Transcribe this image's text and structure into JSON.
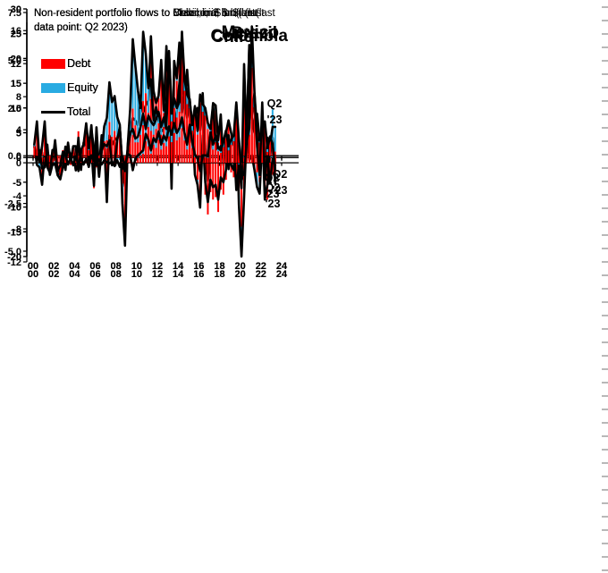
{
  "page": {
    "background": "#ffffff"
  },
  "colors": {
    "debt": "#ff0000",
    "equity": "#29abe2",
    "total": "#000000",
    "axis": "#000000",
    "edge_ticks": "#b0b0b0"
  },
  "legend": {
    "debt": "Debt",
    "equity": "Equity",
    "total": "Total"
  },
  "chart_data": [
    {
      "id": "mexico",
      "type": "bar",
      "country_label": "Mexico",
      "title_line1": "Non-resident portfolio flows to Mexico, in $ bn (last",
      "title_line2": "data point: Q2 2023)",
      "unit": "$ bn",
      "frequency": "quarterly",
      "x_start": "2000Q1",
      "x_end": "2023Q2",
      "annotation_line1": "Q2",
      "annotation_line2": "'23",
      "x_tick_labels": [
        "00",
        "02",
        "04",
        "06",
        "08",
        "10",
        "12",
        "14",
        "16",
        "18",
        "20",
        "22",
        "24"
      ],
      "y_ticks": [
        30,
        25,
        20,
        15,
        10,
        5,
        0,
        -5,
        -10,
        -15,
        -20
      ],
      "y_tick_labels": [
        "30",
        "25",
        "20",
        "15",
        "10",
        "5",
        "0",
        "-5",
        "-10",
        "-15",
        "-20"
      ],
      "ylim": {
        "min": -20,
        "max": 30
      },
      "total_note": "black line = Debt + Equity",
      "series": {
        "debt": [
          2.0,
          -0.5,
          -1.0,
          -4.0,
          1.5,
          0.5,
          -1.0,
          0.5,
          3.0,
          -1.5,
          -3.5,
          1.5,
          -2.0,
          2.5,
          -1.5,
          1.5,
          -2.0,
          5.3,
          -2.0,
          2.5,
          2.5,
          0.5,
          4.5,
          1.0,
          -2.0,
          -1.0,
          3.5,
          2.0,
          -6.0,
          3.0,
          1.5,
          4.5,
          4.5,
          6.5,
          -1.0,
          -3.8,
          0.5,
          3.5,
          6.5,
          6.0,
          5.5,
          10.5,
          8.0,
          9.5,
          10.5,
          19.5,
          12.5,
          11.5,
          12.0,
          17.2,
          9.0,
          20.0,
          12.0,
          -3.3,
          18.0,
          15.5,
          20.7,
          8.5,
          12.0,
          7.5,
          10.8,
          4.5,
          7.5,
          9.0,
          5.0,
          12.0,
          2.5,
          -2.8,
          1.5,
          10.0,
          9.5,
          3.0,
          8.0,
          -1.0,
          4.5,
          6.8,
          4.5,
          2.0,
          4.0,
          -1.5,
          -0.5,
          -3.5,
          7.5,
          -0.2,
          0.8,
          -1.5,
          -3.0,
          -5.0,
          3.7,
          -3.2,
          3.5,
          0.8,
          3.5,
          -3.2
        ],
        "equity": [
          0.5,
          -1.0,
          -1.0,
          -1.5,
          -0.5,
          -1.0,
          -0.5,
          -1.5,
          0.5,
          -0.5,
          -0.7,
          -0.5,
          -0.5,
          0.5,
          0.5,
          0.5,
          -0.5,
          -1.3,
          -0.5,
          0.5,
          1.0,
          0.5,
          1.0,
          1.0,
          1.0,
          -1.0,
          1.0,
          1.0,
          -3.0,
          1.5,
          1.0,
          -1.0,
          -0.5,
          -0.5,
          -0.5,
          -2.0,
          0.0,
          1.0,
          1.5,
          1.5,
          1.0,
          1.0,
          1.0,
          1.0,
          1.0,
          5.0,
          1.0,
          -0.5,
          0.5,
          2.5,
          0.5,
          2.5,
          1.0,
          -3.0,
          1.5,
          0.5,
          2.5,
          0.5,
          1.0,
          0.5,
          1.0,
          0.5,
          1.0,
          1.0,
          0.5,
          1.0,
          -0.5,
          -2.0,
          0.5,
          1.0,
          1.0,
          0.5,
          0.7,
          -0.5,
          0.5,
          0.7,
          0.5,
          0.5,
          0.5,
          -0.5,
          -0.5,
          -1.0,
          0.8,
          -0.3,
          -0.3,
          -1.0,
          -3.0,
          -2.3,
          0.5,
          -1.4,
          0.5,
          -0.3,
          0.5,
          -2.0
        ]
      }
    },
    {
      "id": "brazil",
      "type": "bar",
      "country_label": "Brazil",
      "title_line1": "Non-resident portfolio flows to Brazil, in $ bn (last",
      "title_line2": "data point: Q2 2023)",
      "unit": "$ bn",
      "frequency": "quarterly",
      "x_start": "2000Q1",
      "x_end": "2023Q2",
      "annotation_line1": "Q2",
      "annotation_line2": "'23",
      "x_tick_labels": [
        "00",
        "02",
        "04",
        "06",
        "08",
        "10",
        "12",
        "14",
        "16",
        "18",
        "20",
        "22",
        "24"
      ],
      "y_ticks": [
        30,
        25,
        20,
        15,
        10,
        5,
        0,
        -5,
        -10,
        -15,
        -20
      ],
      "y_tick_labels": [
        "30",
        "25",
        "20",
        "15",
        "10",
        "5",
        "0",
        "-5",
        "-10",
        "-15",
        "-20"
      ],
      "ylim": {
        "min": -20,
        "max": 30
      },
      "total_note": "black line = Debt + Equity",
      "series": {
        "debt": [
          1.5,
          -0.5,
          1.0,
          -1.5,
          -1.5,
          2.0,
          -2.5,
          -1.0,
          -0.8,
          -2.8,
          -3.6,
          -1.5,
          1.2,
          0.8,
          0.2,
          0.6,
          -2.0,
          -1.0,
          0.5,
          1.2,
          2.0,
          -1.0,
          0.8,
          -6.2,
          4.0,
          -3.2,
          0.2,
          3.3,
          3.5,
          7.2,
          4.2,
          5.4,
          4.2,
          2.6,
          -5.3,
          -12.8,
          -1.0,
          2.8,
          9.9,
          6.5,
          4.5,
          4.0,
          11.4,
          13.0,
          9.0,
          11.8,
          5.5,
          8.2,
          5.3,
          3.2,
          2.8,
          7.2,
          12.5,
          7.0,
          2.0,
          5.5,
          10.0,
          13.9,
          7.0,
          12.7,
          7.5,
          4.5,
          -2.5,
          -4.5,
          -8.1,
          2.5,
          -7.5,
          -11.5,
          -7.0,
          -8.5,
          -8.0,
          -11.0,
          -6.5,
          -7.5,
          -4.5,
          2.5,
          -3.0,
          -4.0,
          9.3,
          -7.5,
          -14.0,
          -6.5,
          2.0,
          12.1,
          4.5,
          7.0,
          2.5,
          -4.0,
          3.5,
          -6.0,
          -8.5,
          -2.0,
          -3.5,
          1.2
        ],
        "equity": [
          0.7,
          -0.3,
          0.5,
          -0.7,
          -0.5,
          0.6,
          -1.0,
          -0.4,
          -0.4,
          -0.8,
          -0.8,
          -0.5,
          1.0,
          0.6,
          0.4,
          0.6,
          -0.6,
          -0.2,
          0.7,
          1.0,
          1.2,
          0.4,
          0.8,
          0.5,
          2.1,
          0.6,
          1.0,
          3.0,
          4.5,
          8.0,
          7.0,
          7.0,
          4.0,
          4.0,
          -4.0,
          -5.0,
          3.0,
          7.0,
          14.0,
          12.0,
          9.0,
          6.0,
          14.0,
          8.0,
          5.0,
          4.0,
          2.0,
          2.0,
          2.0,
          2.0,
          3.0,
          4.0,
          9.0,
          3.0,
          3.0,
          4.0,
          5.0,
          6.0,
          4.0,
          5.0,
          3.0,
          2.0,
          -1.0,
          -1.0,
          -2.0,
          2.0,
          2.5,
          2.5,
          2.5,
          2.5,
          2.5,
          2.5,
          2.5,
          2.5,
          2.0,
          2.0,
          1.5,
          1.5,
          1.5,
          -2.0,
          -6.0,
          -1.5,
          3.0,
          10.0,
          4.0,
          6.0,
          3.0,
          2.0,
          3.0,
          -2.5,
          3.0,
          4.5,
          9.7,
          5.0
        ]
      }
    },
    {
      "id": "colombia",
      "type": "bar",
      "country_label": "Colombia",
      "title_line1": "Non-resident portfolio flows to Colombia, in $ bn (last",
      "title_line2": "data point: Q2 2023)",
      "unit": "$ bn",
      "frequency": "quarterly",
      "x_start": "2000Q1",
      "x_end": "2023Q2",
      "annotation_line1": "Q2",
      "annotation_line2": "'23",
      "x_tick_labels": [
        "00",
        "02",
        "04",
        "06",
        "08",
        "10",
        "12",
        "14",
        "16",
        "18",
        "20",
        "22",
        "24"
      ],
      "y_ticks": [
        7.5,
        5.0,
        2.5,
        0.0,
        -2.5,
        -5.0
      ],
      "y_tick_labels": [
        "7.5",
        "5.0",
        "2.5",
        "0.0",
        "-2.5",
        "-5.0"
      ],
      "ylim": {
        "min": -5,
        "max": 7.5
      },
      "total_note": "black line = Debt + Equity",
      "series": {
        "debt": [
          0.5,
          1.6,
          -0.3,
          0.4,
          1.6,
          -0.5,
          -0.8,
          0.2,
          0.2,
          -0.7,
          -0.4,
          0.2,
          -0.4,
          0.5,
          -0.3,
          0.4,
          0.4,
          -0.7,
          0.2,
          0.5,
          1.5,
          0.3,
          1.4,
          -0.4,
          0.3,
          -1.0,
          0.2,
          0.5,
          0.4,
          0.7,
          -0.4,
          -0.3,
          0.7,
          1.3,
          -0.5,
          -0.7,
          0.2,
          1.0,
          1.1,
          0.7,
          0.7,
          1.1,
          1.6,
          1.0,
          1.5,
          1.3,
          1.1,
          1.4,
          1.7,
          1.1,
          1.5,
          1.0,
          5.0,
          1.8,
          2.5,
          2.0,
          2.3,
          5.5,
          3.4,
          2.7,
          2.5,
          1.3,
          2.2,
          1.1,
          2.8,
          2.3,
          2.1,
          1.4,
          1.2,
          2.4,
          0.5,
          0.2,
          0.4,
          0.2,
          0.9,
          -0.6,
          0.5,
          0.7,
          -1.6,
          -0.4,
          -1.4,
          4.6,
          0.7,
          5.6,
          1.8,
          1.0,
          2.0,
          0.7,
          1.2,
          1.6,
          0.2,
          0.8,
          0.5,
          -0.5
        ],
        "equity": [
          0.1,
          0.2,
          0.0,
          0.1,
          0.2,
          -0.1,
          -0.1,
          0.1,
          0.1,
          -0.1,
          -0.1,
          0.0,
          -0.1,
          0.1,
          0.0,
          0.1,
          0.1,
          -0.1,
          0.1,
          0.1,
          0.2,
          0.1,
          0.2,
          0.0,
          0.1,
          -0.1,
          0.1,
          0.1,
          0.1,
          0.1,
          -0.1,
          -0.1,
          0.1,
          0.2,
          -0.1,
          -0.1,
          0.1,
          0.2,
          0.3,
          0.2,
          0.3,
          0.4,
          0.6,
          0.4,
          0.6,
          0.5,
          0.5,
          0.5,
          0.6,
          0.4,
          0.5,
          0.4,
          0.4,
          0.4,
          0.5,
          0.5,
          0.5,
          1.0,
          0.6,
          0.5,
          0.4,
          0.3,
          0.4,
          0.2,
          0.4,
          0.4,
          0.4,
          0.3,
          0.2,
          0.3,
          0.1,
          0.1,
          0.1,
          0.1,
          0.1,
          -0.1,
          0.1,
          0.1,
          -0.2,
          -0.1,
          -0.3,
          0.2,
          0.1,
          0.2,
          0.2,
          0.2,
          0.2,
          0.1,
          0.2,
          0.2,
          0.2,
          0.2,
          0.1,
          -0.2
        ]
      }
    },
    {
      "id": "chile",
      "type": "bar",
      "country_label": "Chile",
      "title_line1": "Non-resident portfolio flows to Chile, in $ bn (last",
      "title_line2": "data point: Q2 2023)",
      "unit": "$ bn",
      "frequency": "quarterly",
      "x_start": "2000Q1",
      "x_end": "2023Q2",
      "annotation_line1": "Q2",
      "annotation_line2": "'23",
      "x_tick_labels": [
        "00",
        "02",
        "04",
        "06",
        "08",
        "10",
        "12",
        "14",
        "16",
        "18",
        "20",
        "22",
        "24"
      ],
      "y_ticks": [
        16,
        12,
        8,
        4,
        0,
        -4,
        -8,
        -12
      ],
      "y_tick_labels": [
        "16",
        "12",
        "8",
        "4",
        "0",
        "-4",
        "-8",
        "-12"
      ],
      "ylim": {
        "min": -12,
        "max": 17
      },
      "total_note": "black line = Debt + Equity; data begin 2003",
      "series": {
        "debt": [
          null,
          null,
          null,
          null,
          null,
          null,
          null,
          null,
          null,
          null,
          null,
          null,
          0.7,
          -0.2,
          0.5,
          -0.3,
          0.6,
          -0.3,
          0.5,
          -0.2,
          0.4,
          -0.4,
          0.7,
          0.2,
          -0.3,
          0.3,
          -0.2,
          0.2,
          0.1,
          -0.1,
          0.2,
          -0.3,
          0.3,
          -0.4,
          0.6,
          -0.5,
          0.8,
          0.7,
          -0.7,
          0.4,
          0.6,
          0.9,
          1.1,
          2.6,
          2.0,
          1.1,
          2.2,
          1.8,
          2.8,
          1.6,
          2.4,
          2.0,
          3.2,
          2.5,
          3.6,
          2.7,
          3.1,
          4.2,
          2.7,
          1.6,
          3.5,
          1.8,
          0.7,
          0.4,
          -0.8,
          0.7,
          0.7,
          0.6,
          2.8,
          1.6,
          2.5,
          1.4,
          1.2,
          1.9,
          3.0,
          1.5,
          2.2,
          2.6,
          6.0,
          2.2,
          -0.7,
          -1.0,
          2.0,
          3.4,
          11.5,
          6.7,
          1.6,
          -1.0,
          6.3,
          -1.3,
          0.6,
          -1.8,
          0.4,
          -0.2
        ],
        "equity": [
          null,
          null,
          null,
          null,
          null,
          null,
          null,
          null,
          null,
          null,
          null,
          null,
          0.2,
          0.0,
          0.1,
          0.0,
          0.2,
          0.0,
          0.1,
          0.0,
          0.1,
          -0.1,
          0.2,
          0.0,
          0.0,
          0.1,
          0.0,
          0.1,
          0.0,
          0.0,
          0.0,
          -0.1,
          0.0,
          -0.1,
          0.2,
          -0.1,
          0.3,
          0.2,
          -0.2,
          0.1,
          0.3,
          0.3,
          0.4,
          0.9,
          0.8,
          0.4,
          0.8,
          0.7,
          1.0,
          0.6,
          0.9,
          0.7,
          1.2,
          0.9,
          1.2,
          0.9,
          1.1,
          1.3,
          0.9,
          0.6,
          1.1,
          0.6,
          0.3,
          0.1,
          -0.2,
          0.2,
          0.2,
          0.2,
          0.9,
          0.6,
          0.8,
          0.4,
          0.3,
          0.6,
          0.9,
          0.5,
          0.6,
          0.7,
          1.3,
          0.6,
          -0.3,
          -0.5,
          0.5,
          0.8,
          5.0,
          1.8,
          0.4,
          -0.5,
          1.0,
          -0.5,
          0.2,
          -0.7,
          0.1,
          -0.1
        ]
      }
    }
  ]
}
